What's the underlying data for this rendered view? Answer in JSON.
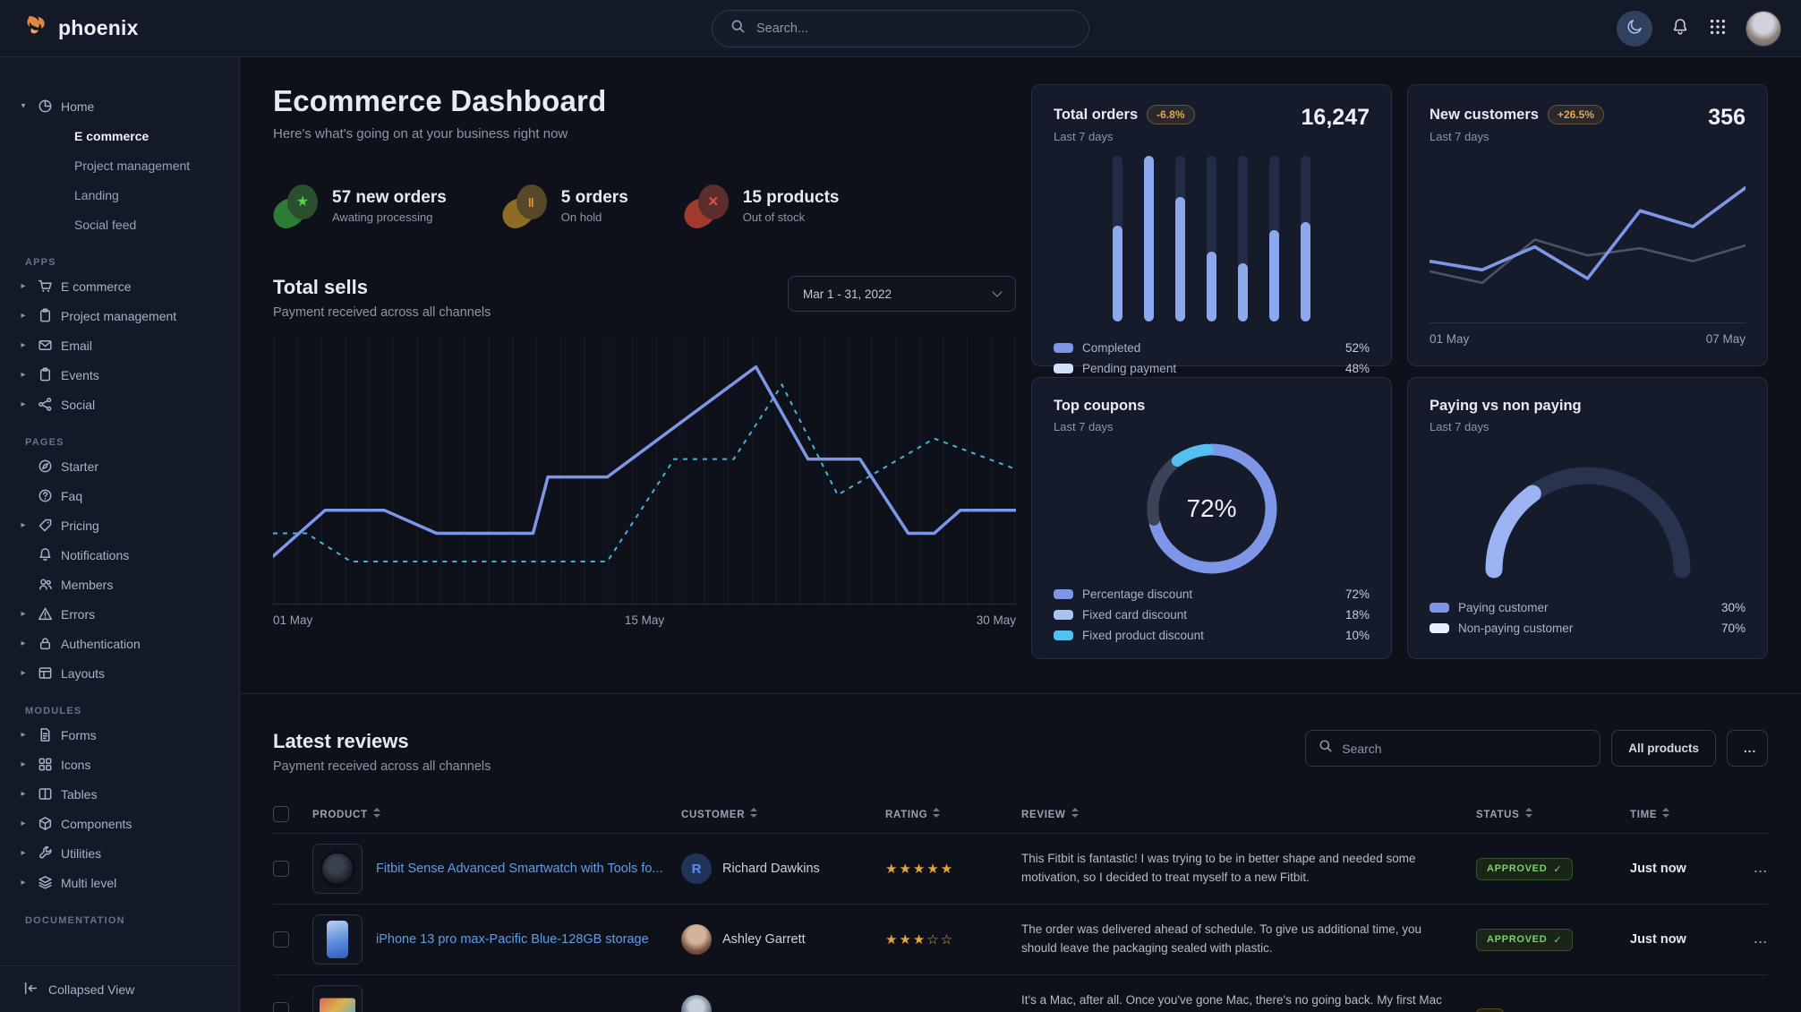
{
  "topbar": {
    "logo_text": "phoenix",
    "search_placeholder": "Search..."
  },
  "sidebar": {
    "sections": [
      {
        "label": "",
        "items": [
          {
            "caret": "▾",
            "icon": "pie",
            "label": "Home",
            "children": [
              {
                "label": "E commerce",
                "cls": "active"
              },
              {
                "label": "Project management",
                "cls": ""
              },
              {
                "label": "Landing",
                "cls": ""
              },
              {
                "label": "Social feed",
                "cls": ""
              }
            ]
          }
        ]
      },
      {
        "label": "APPS",
        "items": [
          {
            "caret": "▸",
            "icon": "cart",
            "label": "E commerce",
            "children": []
          },
          {
            "caret": "▸",
            "icon": "clipboard",
            "label": "Project management",
            "children": []
          },
          {
            "caret": "▸",
            "icon": "mail",
            "label": "Email",
            "children": []
          },
          {
            "caret": "▸",
            "icon": "calendar",
            "label": "Events",
            "children": []
          },
          {
            "caret": "▸",
            "icon": "share",
            "label": "Social",
            "children": []
          }
        ]
      },
      {
        "label": "PAGES",
        "items": [
          {
            "caret": "",
            "icon": "compass",
            "label": "Starter",
            "children": []
          },
          {
            "caret": "",
            "icon": "help",
            "label": "Faq",
            "children": []
          },
          {
            "caret": "▸",
            "icon": "tag",
            "label": "Pricing",
            "children": []
          },
          {
            "caret": "",
            "icon": "bell",
            "label": "Notifications",
            "children": []
          },
          {
            "caret": "",
            "icon": "users",
            "label": "Members",
            "children": []
          },
          {
            "caret": "▸",
            "icon": "warning",
            "label": "Errors",
            "children": []
          },
          {
            "caret": "▸",
            "icon": "lock",
            "label": "Authentication",
            "children": []
          },
          {
            "caret": "▸",
            "icon": "layout",
            "label": "Layouts",
            "children": []
          }
        ]
      },
      {
        "label": "MODULES",
        "items": [
          {
            "caret": "▸",
            "icon": "file",
            "label": "Forms",
            "children": []
          },
          {
            "caret": "▸",
            "icon": "grid",
            "label": "Icons",
            "children": []
          },
          {
            "caret": "▸",
            "icon": "columns",
            "label": "Tables",
            "children": []
          },
          {
            "caret": "▸",
            "icon": "box",
            "label": "Components",
            "children": []
          },
          {
            "caret": "▸",
            "icon": "wrench",
            "label": "Utilities",
            "children": []
          },
          {
            "caret": "▸",
            "icon": "layers",
            "label": "Multi level",
            "children": []
          }
        ]
      },
      {
        "label": "DOCUMENTATION",
        "items": []
      }
    ],
    "footer": {
      "label": "Collapsed View"
    }
  },
  "main": {
    "header": {
      "title": "Ecommerce Dashboard",
      "subtitle": "Here's what's going on at your business right now"
    },
    "stats": [
      {
        "value": "57 new orders",
        "sub": "Awating processing",
        "glyph": "★",
        "cls": "green"
      },
      {
        "value": "5 orders",
        "sub": "On hold",
        "glyph": "‖",
        "cls": "amber"
      },
      {
        "value": "15 products",
        "sub": "Out of stock",
        "glyph": "×",
        "cls": "red"
      }
    ],
    "total_sells": {
      "title": "Total sells",
      "subtitle": "Payment received across all channels",
      "range": "Mar 1 - 31, 2022",
      "x_labels": [
        "01 May",
        "15 May",
        "30 May"
      ]
    },
    "cards": {
      "total_orders": {
        "title": "Total orders",
        "badge": "-6.8%",
        "period": "Last 7 days",
        "value": "16,247",
        "legend": [
          {
            "label": "Completed",
            "value": "52%",
            "sw": "#7e96e8"
          },
          {
            "label": "Pending payment",
            "value": "48%",
            "sw": "#d4e0f9"
          }
        ]
      },
      "new_customers": {
        "title": "New customers",
        "badge": "+26.5%",
        "period": "Last 7 days",
        "value": "356",
        "x_left": "01 May",
        "x_right": "07 May"
      },
      "top_coupons": {
        "title": "Top coupons",
        "period": "Last 7 days",
        "legend": [
          {
            "label": "Percentage discount",
            "value": "72%",
            "sw": "#7e96e8"
          },
          {
            "label": "Fixed card discount",
            "value": "18%",
            "sw": "#a9c2f4"
          },
          {
            "label": "Fixed product discount",
            "value": "10%",
            "sw": "#54c0f0"
          }
        ]
      },
      "paying": {
        "title": "Paying vs non paying",
        "period": "Last 7 days",
        "legend": [
          {
            "label": "Paying customer",
            "value": "30%",
            "sw": "#7e96e8"
          },
          {
            "label": "Non-paying customer",
            "value": "70%",
            "sw": "#e8eefc"
          }
        ]
      }
    },
    "reviews": {
      "title": "Latest reviews",
      "subtitle": "Payment received across all channels",
      "search_placeholder": "Search",
      "filter_label": "All products",
      "menu_label": "...",
      "columns": [
        "PRODUCT",
        "CUSTOMER",
        "RATING",
        "REVIEW",
        "STATUS",
        "TIME"
      ],
      "rows": [
        {
          "product": "Fitbit Sense Advanced Smartwatch with Tools fo...",
          "thumb": "watch",
          "customer": "Richard Dawkins",
          "avatar_cls": "letter",
          "avatar_text": "R",
          "stars": "★★★★★",
          "review": "This Fitbit is fantastic! I was trying to be in better shape and needed some motivation, so I decided to treat myself to a new Fitbit.",
          "status": "APPROVED",
          "check": "✓",
          "status_cls": "approved",
          "time": "Just now",
          "menu": "..."
        },
        {
          "product": "iPhone 13 pro max-Pacific Blue-128GB storage",
          "thumb": "phone",
          "customer": "Ashley Garrett",
          "avatar_cls": "photo1",
          "avatar_text": "",
          "stars": "★★★☆☆",
          "review": "The order was delivered ahead of schedule. To give us additional time, you should leave the packaging sealed with plastic.",
          "status": "APPROVED",
          "check": "✓",
          "status_cls": "approved",
          "time": "Just now",
          "menu": "..."
        },
        {
          "product": "",
          "thumb": "laptop",
          "customer": "",
          "avatar_cls": "photo2",
          "avatar_text": "",
          "stars": "",
          "review": "It's a Mac, after all. Once you've gone Mac, there's no going back. My first Mac lasted...",
          "status": "",
          "check": "",
          "status_cls": "pending",
          "time": "",
          "menu": ""
        }
      ]
    }
  },
  "chart_data": [
    {
      "name": "total_sells",
      "type": "line",
      "title": "Total sells",
      "x_ticks": [
        "01 May",
        "15 May",
        "30 May"
      ],
      "solid_color": "#7e96e8",
      "dashed_color": "#46b2d8",
      "grid": "vertical",
      "solid": [
        [
          0,
          84
        ],
        [
          7,
          66
        ],
        [
          15,
          66
        ],
        [
          22,
          75
        ],
        [
          35,
          75
        ],
        [
          37,
          53
        ],
        [
          45,
          53
        ],
        [
          65,
          10
        ],
        [
          72,
          46
        ],
        [
          79,
          46
        ],
        [
          85.5,
          75
        ],
        [
          89,
          75
        ],
        [
          92.5,
          66
        ],
        [
          100,
          66
        ]
      ],
      "dashed": [
        [
          0,
          75
        ],
        [
          4.5,
          75
        ],
        [
          10.5,
          86
        ],
        [
          45,
          86
        ],
        [
          54,
          46
        ],
        [
          62,
          46
        ],
        [
          68.5,
          17
        ],
        [
          76,
          60
        ],
        [
          89,
          38
        ],
        [
          100,
          50
        ]
      ]
    },
    {
      "name": "total_orders_bars",
      "type": "bar",
      "fills_pct": [
        58,
        100,
        75,
        42,
        35,
        55,
        60
      ],
      "fill_color": "#8da9ee",
      "track_color": "#232c47"
    },
    {
      "name": "new_customers_lines",
      "type": "line",
      "x_ticks": [
        "01 May",
        "07 May"
      ],
      "blue": [
        36,
        30,
        46,
        24,
        71,
        60,
        87
      ],
      "gray": [
        29,
        21,
        51,
        40,
        45,
        36,
        47
      ],
      "blue_color": "#7e96e8",
      "gray_color": "#4a5368"
    },
    {
      "name": "top_coupons_donut",
      "type": "donut",
      "center": "72%",
      "segments": [
        {
          "label": "Percentage discount",
          "value": 72,
          "color": "#7e96e8"
        },
        {
          "label": "Fixed card discount",
          "value": 18,
          "color": "#3b4359"
        },
        {
          "label": "Fixed product discount",
          "value": 10,
          "color": "#54c0f0"
        }
      ]
    },
    {
      "name": "paying_gauge",
      "type": "gauge",
      "value": 30,
      "fill_color": "#9bb3f2",
      "track_color": "#283350"
    }
  ]
}
